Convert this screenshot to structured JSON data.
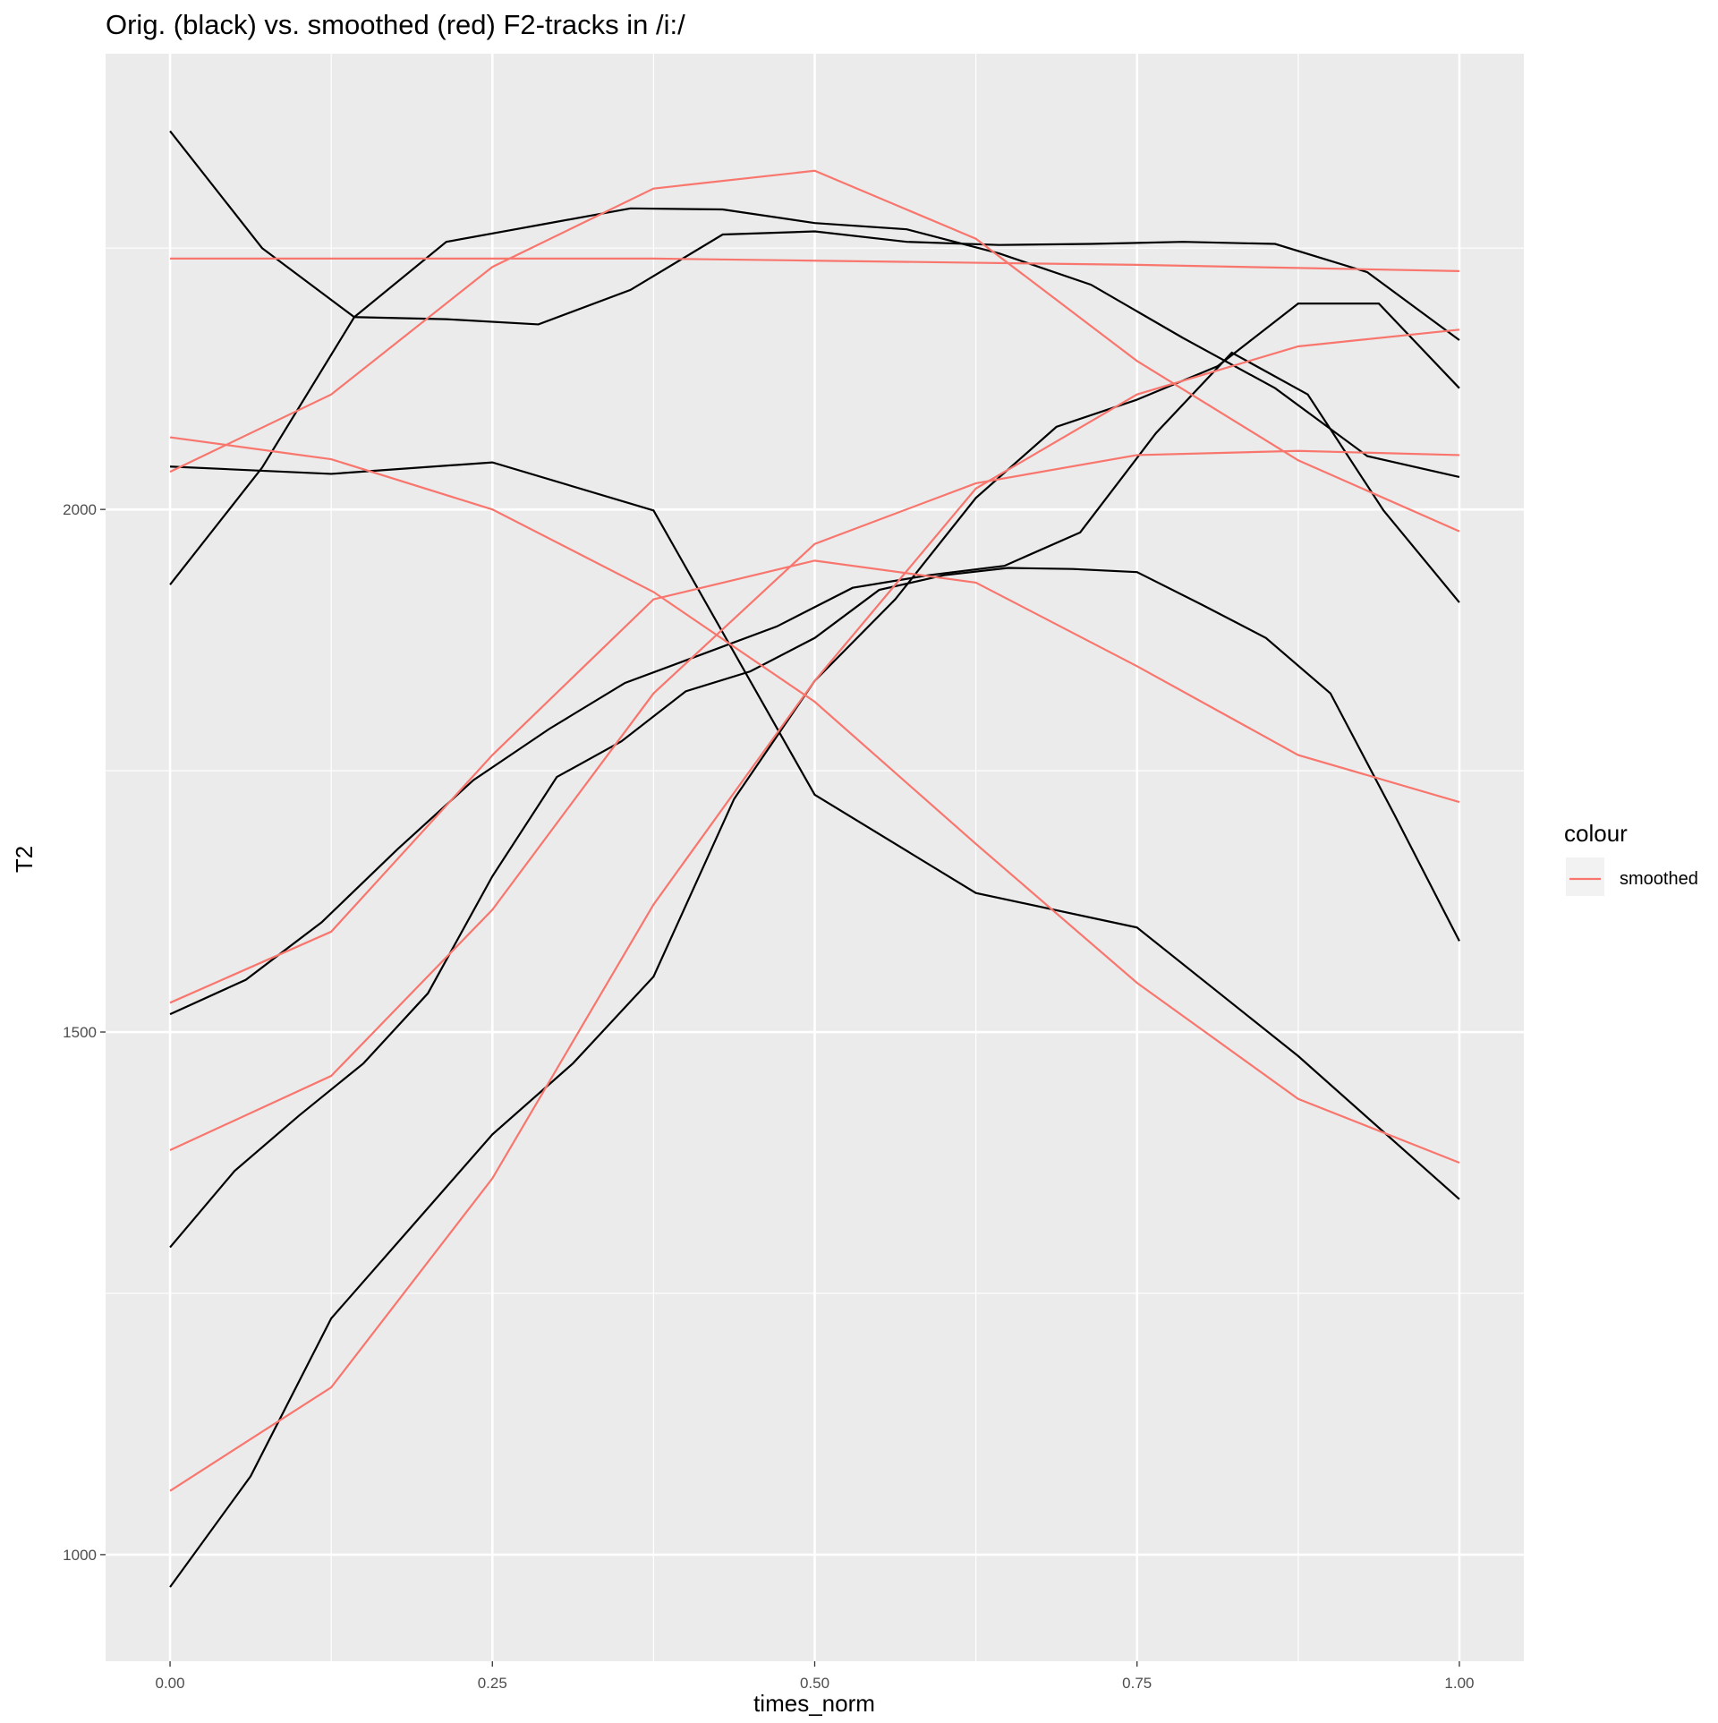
{
  "chart_data": {
    "type": "line",
    "title": "Orig. (black) vs. smoothed (red) F2-tracks in /i:/",
    "x_label": "times_norm",
    "y_label": "T2",
    "legend_title": "colour",
    "xlim": [
      -0.05,
      1.05
    ],
    "ylim": [
      898,
      2436
    ],
    "xticks": [
      {
        "value": 0,
        "label": "0.00"
      },
      {
        "value": 0.25,
        "label": "0.25"
      },
      {
        "value": 0.5,
        "label": "0.50"
      },
      {
        "value": 0.75,
        "label": "0.75"
      },
      {
        "value": 1,
        "label": "1.00"
      }
    ],
    "yticks": [
      1000,
      1500,
      2000
    ],
    "xminorticks": [
      0.125,
      0.375,
      0.625,
      0.875
    ],
    "yminorticks": [
      1250,
      1750,
      2250
    ],
    "grid": true,
    "series": [
      {
        "color": "#000000",
        "lines": [
          {
            "x": [
              0,
              0.0714,
              0.1429,
              0.2143,
              0.2857,
              0.3571,
              0.4286,
              0.5,
              0.5714,
              0.6429,
              0.7143,
              0.7857,
              0.8571,
              0.9286,
              1
            ],
            "values": [
              2362,
              2250,
              2184,
              2182,
              2177,
              2210,
              2263,
              2266,
              2256,
              2253,
              2254,
              2256,
              2254,
              2227,
              2162
            ]
          },
          {
            "x": [
              0,
              0.0714,
              0.1429,
              0.2143,
              0.2857,
              0.3571,
              0.4286,
              0.5,
              0.5714,
              0.6429,
              0.7143,
              0.7857,
              0.8571,
              0.9286,
              1
            ],
            "values": [
              1928,
              2040,
              2184,
              2256,
              2272,
              2288,
              2287,
              2274,
              2268,
              2245,
              2215,
              2164,
              2116,
              2051,
              2031
            ]
          },
          {
            "x": [
              0,
              0.125,
              0.25,
              0.375,
              0.5,
              0.625,
              0.75,
              0.875,
              1
            ],
            "values": [
              2041,
              2034,
              2045,
              1999,
              1727,
              1633,
              1600,
              1477,
              1340
            ]
          },
          {
            "x": [
              0,
              0.0625,
              0.125,
              0.1875,
              0.25,
              0.3125,
              0.375,
              0.4375,
              0.5,
              0.5625,
              0.625,
              0.6875,
              0.75,
              0.8125,
              0.875,
              0.9375,
              1
            ],
            "values": [
              969,
              1075,
              1226,
              1314,
              1402,
              1470,
              1553,
              1723,
              1836,
              1914,
              2011,
              2079,
              2105,
              2137,
              2197,
              2197,
              2116
            ]
          },
          {
            "x": [
              0,
              0.0588,
              0.1176,
              0.1765,
              0.2353,
              0.2941,
              0.3529,
              0.4118,
              0.4706,
              0.5294,
              0.5882,
              0.6471,
              0.7059,
              0.7647,
              0.8235,
              0.8824,
              0.9412,
              1
            ],
            "values": [
              1517,
              1550,
              1605,
              1675,
              1741,
              1790,
              1834,
              1861,
              1888,
              1925,
              1937,
              1946,
              1978,
              2073,
              2150,
              2110,
              1999,
              1911
            ]
          },
          {
            "x": [
              0,
              0.05,
              0.1,
              0.15,
              0.2,
              0.25,
              0.3,
              0.35,
              0.4,
              0.45,
              0.5,
              0.55,
              0.6,
              0.65,
              0.7,
              0.75,
              0.8,
              0.85,
              0.9,
              0.95,
              1
            ],
            "values": [
              1294,
              1367,
              1420,
              1470,
              1537,
              1649,
              1744,
              1778,
              1826,
              1845,
              1877,
              1923,
              1937,
              1944,
              1943,
              1940,
              1909,
              1877,
              1824,
              1707,
              1587
            ]
          }
        ]
      },
      {
        "name": "smoothed",
        "color": "#F8766D",
        "lines": [
          {
            "x": [
              0,
              0.125,
              0.25,
              0.375,
              0.5,
              0.625,
              0.75,
              0.875,
              1
            ],
            "values": [
              2240,
              2240,
              2240,
              2240,
              2238,
              2236,
              2234,
              2231,
              2228
            ]
          },
          {
            "x": [
              0,
              0.125,
              0.25,
              0.375,
              0.5,
              0.625,
              0.75,
              0.875,
              1
            ],
            "values": [
              2036,
              2110,
              2232,
              2307,
              2324,
              2259,
              2142,
              2047,
              1979
            ]
          },
          {
            "x": [
              0,
              0.125,
              0.25,
              0.375,
              0.5,
              0.625,
              0.75,
              0.875,
              1
            ],
            "values": [
              2069,
              2048,
              2000,
              1921,
              1816,
              1680,
              1547,
              1436,
              1375
            ]
          },
          {
            "x": [
              0,
              0.125,
              0.25,
              0.375,
              0.5,
              0.625,
              0.75,
              0.875,
              1
            ],
            "values": [
              1061,
              1160,
              1360,
              1622,
              1836,
              2020,
              2110,
              2156,
              2172
            ]
          },
          {
            "x": [
              0,
              0.125,
              0.25,
              0.375,
              0.5,
              0.625,
              0.75,
              0.875,
              1
            ],
            "values": [
              1387,
              1458,
              1617,
              1824,
              1967,
              2025,
              2052,
              2056,
              2052
            ]
          },
          {
            "x": [
              0,
              0.125,
              0.25,
              0.375,
              0.5,
              0.625,
              0.75,
              0.875,
              1
            ],
            "values": [
              1528,
              1596,
              1765,
              1914,
              1951,
              1930,
              1850,
              1765,
              1720
            ]
          }
        ]
      }
    ]
  }
}
